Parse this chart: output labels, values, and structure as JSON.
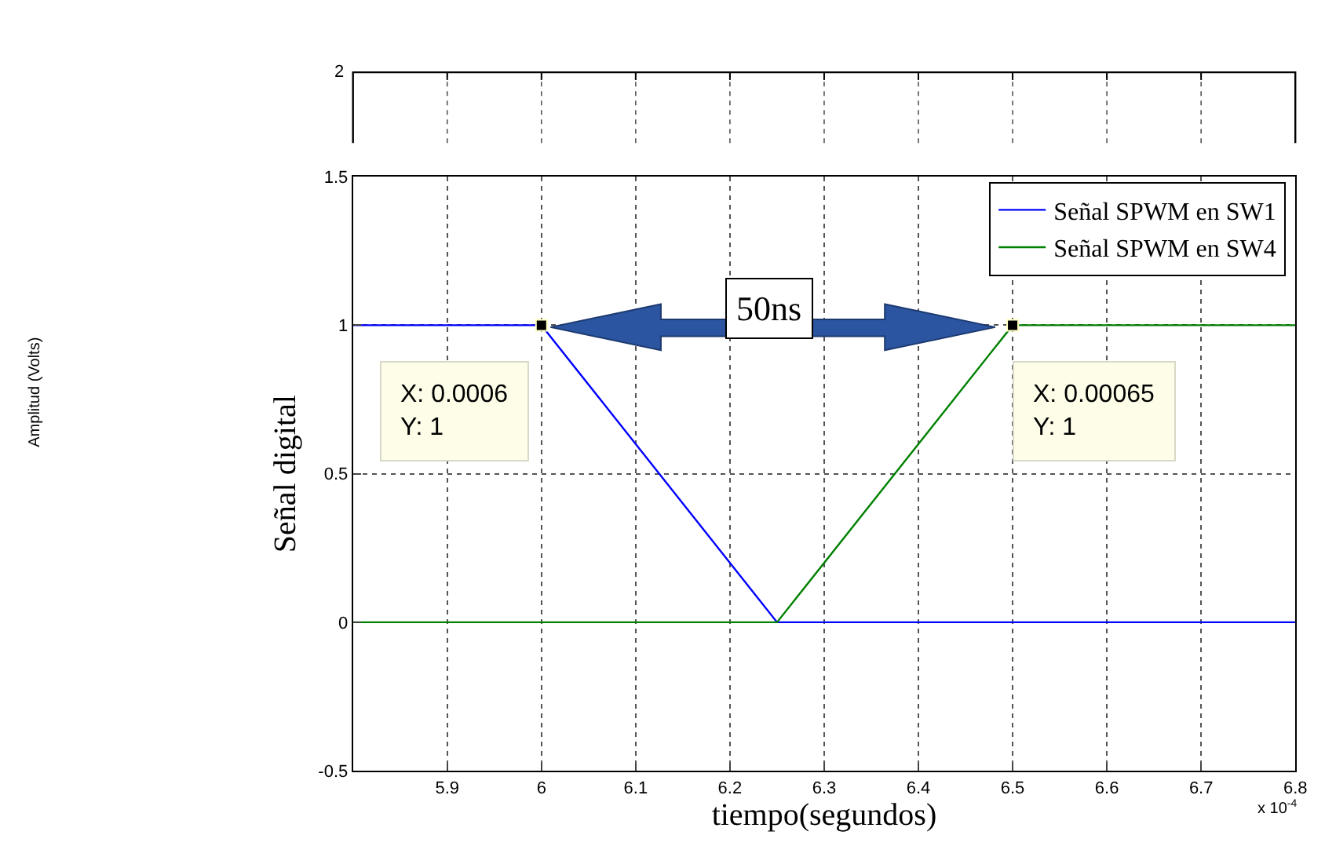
{
  "chart_data": [
    {
      "type": "other",
      "ylabel": "Amplitud (Volts)",
      "annotations": [
        "2"
      ]
    },
    {
      "type": "line",
      "xlabel": "tiempo(segundos)",
      "ylabel": "Señal digital",
      "xlim": [
        5.8,
        6.8
      ],
      "ylim": [
        -0.5,
        1.5
      ],
      "yticks": [
        -0.5,
        0,
        0.5,
        1,
        1.5
      ],
      "xticks": [
        5.9,
        6,
        6.1,
        6.2,
        6.3,
        6.4,
        6.5,
        6.6,
        6.7,
        6.8
      ],
      "grid": true,
      "legend": "top right",
      "series": [
        {
          "name": "Señal SPWM en SW1",
          "color": "#0000ff",
          "x": [
            5.8,
            6,
            6.25,
            6.8
          ],
          "values": [
            1,
            1,
            0,
            0
          ]
        },
        {
          "name": "Señal SPWM en SW4",
          "color": "#008000",
          "x": [
            5.8,
            6.25,
            6.5,
            6.8
          ],
          "values": [
            0,
            0,
            1,
            1
          ]
        }
      ],
      "annotations": [
        {
          "text": "X: 0.0006\nY: 1",
          "x": 6,
          "y": 1
        },
        {
          "text": "X: 0.00065\nY: 1",
          "x": 6.5,
          "y": 1
        },
        "50ns",
        "x 10$^{-4}$"
      ]
    }
  ]
}
